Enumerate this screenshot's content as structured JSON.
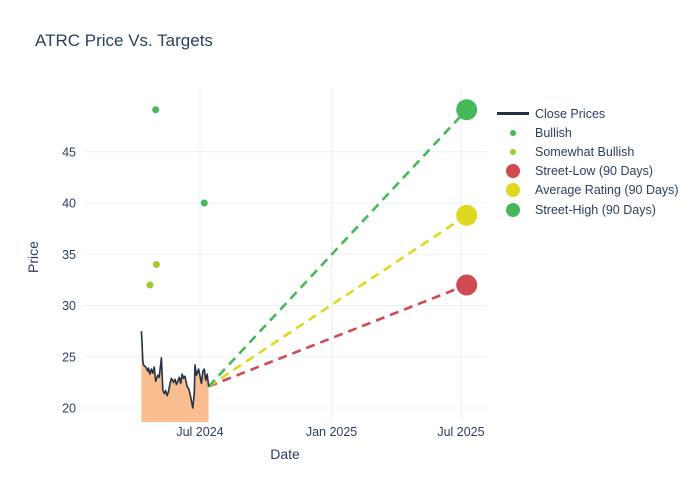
{
  "chart_data": {
    "type": "line+scatter",
    "title": "ATRC Price Vs. Targets",
    "xlabel": "Date",
    "ylabel": "Price",
    "ylim": [
      18.6,
      51.2
    ],
    "grid": true,
    "legend_position": "right",
    "background": "#ffffff",
    "gridline_color": "#ebf0f8",
    "text_color": "#2a3f5f",
    "x_ticks": [
      {
        "label": "Jul 2024",
        "date": "2024-07-01"
      },
      {
        "label": "Jan 2025",
        "date": "2025-01-01"
      },
      {
        "label": "Jul 2025",
        "date": "2025-07-01"
      }
    ],
    "y_ticks": [
      20,
      25,
      30,
      35,
      40,
      45
    ],
    "series": [
      {
        "name": "Close Prices",
        "type": "line",
        "color": "#253246",
        "fill": "tozero",
        "fill_color": "#f9bd8f",
        "points": [
          [
            "2024-04-10",
            27.5
          ],
          [
            "2024-04-11",
            26.2
          ],
          [
            "2024-04-12",
            24.6
          ],
          [
            "2024-04-13",
            24.2
          ],
          [
            "2024-04-16",
            24.0
          ],
          [
            "2024-04-19",
            23.6
          ],
          [
            "2024-04-20",
            23.9
          ],
          [
            "2024-04-22",
            23.3
          ],
          [
            "2024-04-24",
            23.8
          ],
          [
            "2024-04-26",
            23.4
          ],
          [
            "2024-04-28",
            24.0
          ],
          [
            "2024-04-30",
            22.6
          ],
          [
            "2024-05-03",
            23.2
          ],
          [
            "2024-05-05",
            23.0
          ],
          [
            "2024-05-08",
            24.9
          ],
          [
            "2024-05-10",
            21.8
          ],
          [
            "2024-05-12",
            21.4
          ],
          [
            "2024-05-14",
            21.7
          ],
          [
            "2024-05-16",
            21.2
          ],
          [
            "2024-05-18",
            21.6
          ],
          [
            "2024-05-20",
            22.4
          ],
          [
            "2024-05-22",
            22.9
          ],
          [
            "2024-05-25",
            22.5
          ],
          [
            "2024-05-27",
            22.8
          ],
          [
            "2024-05-29",
            22.3
          ],
          [
            "2024-05-31",
            22.6
          ],
          [
            "2024-06-02",
            23.0
          ],
          [
            "2024-06-04",
            22.4
          ],
          [
            "2024-06-06",
            23.3
          ],
          [
            "2024-06-08",
            22.9
          ],
          [
            "2024-06-10",
            23.1
          ],
          [
            "2024-06-13",
            22.1
          ],
          [
            "2024-06-15",
            21.9
          ],
          [
            "2024-06-17",
            21.4
          ],
          [
            "2024-06-19",
            20.7
          ],
          [
            "2024-06-21",
            20.0
          ],
          [
            "2024-06-23",
            21.5
          ],
          [
            "2024-06-24",
            24.2
          ],
          [
            "2024-06-26",
            23.2
          ],
          [
            "2024-06-29",
            23.8
          ],
          [
            "2024-07-01",
            23.1
          ],
          [
            "2024-07-03",
            22.4
          ],
          [
            "2024-07-05",
            23.6
          ],
          [
            "2024-07-07",
            23.8
          ],
          [
            "2024-07-09",
            22.7
          ],
          [
            "2024-07-11",
            23.3
          ],
          [
            "2024-07-13",
            22.1
          ]
        ]
      },
      {
        "name": "Bullish",
        "type": "scatter",
        "color": "#47b85a",
        "marker_size": 7,
        "points": [
          [
            "2024-04-30",
            49.1
          ],
          [
            "2024-07-07",
            40.0
          ]
        ]
      },
      {
        "name": "Somewhat Bullish",
        "type": "scatter",
        "color": "#9bcb30",
        "marker_size": 7,
        "points": [
          [
            "2024-04-22",
            32.0
          ],
          [
            "2024-05-01",
            34.0
          ]
        ]
      },
      {
        "name": "Street-Low (90 Days)",
        "type": "projection",
        "color": "#d04a52",
        "line_style": "dashed",
        "marker_size": 21,
        "from": [
          "2024-07-13",
          22.1
        ],
        "to": [
          "2025-07-09",
          32.0
        ]
      },
      {
        "name": "Average Rating (90 Days)",
        "type": "projection",
        "color": "#ded81e",
        "line_style": "dashed",
        "marker_size": 21,
        "from": [
          "2024-07-13",
          22.1
        ],
        "to": [
          "2025-07-09",
          38.8
        ]
      },
      {
        "name": "Street-High (90 Days)",
        "type": "projection",
        "color": "#47b85a",
        "line_style": "dashed",
        "marker_size": 21,
        "from": [
          "2024-07-13",
          22.1
        ],
        "to": [
          "2025-07-09",
          49.1
        ]
      }
    ]
  }
}
